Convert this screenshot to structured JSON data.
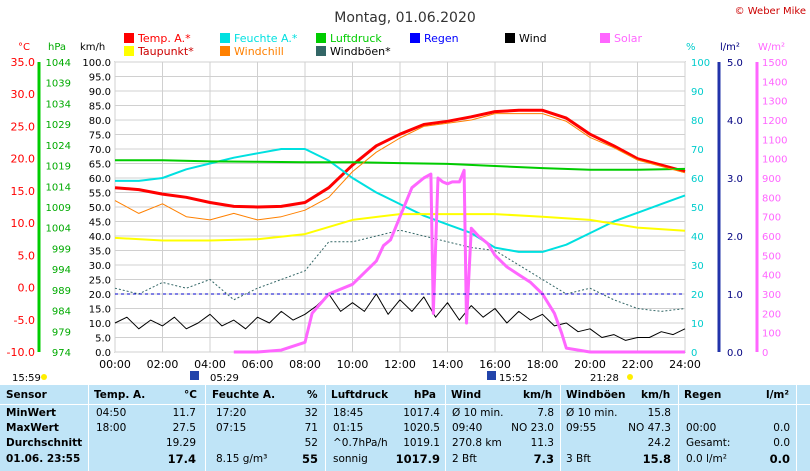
{
  "page": {
    "title": "Montag, 01.06.2020",
    "copyright": "© Weber Mike"
  },
  "legend": [
    {
      "label": "Temp. A.*",
      "color": "#ff0000"
    },
    {
      "label": "Feuchte A.*",
      "color": "#00e0e0"
    },
    {
      "label": "Luftdruck",
      "color": "#00cc00"
    },
    {
      "label": "Regen",
      "color": "#0000ff"
    },
    {
      "label": "Wind",
      "color": "#000000"
    },
    {
      "label": "Solar",
      "color": "#ff66ff"
    },
    {
      "label": "Taupunkt*",
      "color": "#ffff00"
    },
    {
      "label": "Windchill",
      "color": "#ff8000"
    },
    {
      "label": "Windböen*",
      "color": "#336666"
    }
  ],
  "chart_data": {
    "type": "line",
    "axes": {
      "temp": {
        "unit": "°C",
        "ticks": [
          "35.0",
          "30.0",
          "25.0",
          "20.0",
          "15.0",
          "10.0",
          "5.0",
          "0.0",
          "-5.0",
          "-10.0"
        ],
        "range": [
          -10,
          35
        ],
        "color": "#ff0000"
      },
      "pressure": {
        "unit": "hPa",
        "ticks": [
          "1044",
          "1039",
          "1034",
          "1029",
          "1024",
          "1019",
          "1014",
          "1009",
          "1004",
          "999",
          "994",
          "989",
          "984",
          "979",
          "974"
        ],
        "range": [
          974,
          1044
        ],
        "color": "#00aa00"
      },
      "wind": {
        "unit": "km/h",
        "ticks": [
          "100.0",
          "95.0",
          "90.0",
          "85.0",
          "80.0",
          "75.0",
          "70.0",
          "65.0",
          "60.0",
          "55.0",
          "50.0",
          "45.0",
          "40.0",
          "35.0",
          "30.0",
          "25.0",
          "20.0",
          "15.0",
          "10.0",
          "5.0",
          "0.0"
        ],
        "range": [
          0,
          100
        ],
        "color": "#000000"
      },
      "humidity": {
        "unit": "%",
        "ticks": [
          "100",
          "90",
          "80",
          "70",
          "60",
          "50",
          "40",
          "30",
          "20",
          "10",
          "0"
        ],
        "range": [
          0,
          100
        ],
        "color": "#00cccc"
      },
      "rain": {
        "unit": "l/m²",
        "ticks": [
          "5.0",
          "4.0",
          "3.0",
          "2.0",
          "1.0",
          "0.0"
        ],
        "range": [
          0,
          5
        ],
        "color": "#000080"
      },
      "solar": {
        "unit": "W/m²",
        "ticks": [
          "1500",
          "1400",
          "1300",
          "1200",
          "1100",
          "1000",
          "900",
          "800",
          "700",
          "600",
          "500",
          "400",
          "300",
          "200",
          "100",
          "0"
        ],
        "range": [
          0,
          1500
        ],
        "color": "#ff66ff"
      }
    },
    "x_ticks": [
      "00:00",
      "02:00",
      "04:00",
      "06:00",
      "08:00",
      "10:00",
      "12:00",
      "14:00",
      "16:00",
      "18:00",
      "20:00",
      "22:00",
      "24:00"
    ],
    "x_range": [
      0,
      24
    ],
    "series": [
      {
        "name": "Temp. A.*",
        "axis": "temp",
        "color": "#ff0000",
        "width": 3,
        "points": [
          [
            0,
            15.5
          ],
          [
            1,
            15.2
          ],
          [
            2,
            14.5
          ],
          [
            3,
            14
          ],
          [
            4,
            13.2
          ],
          [
            5,
            12.6
          ],
          [
            6,
            12.5
          ],
          [
            7,
            12.6
          ],
          [
            8,
            13.2
          ],
          [
            9,
            15.5
          ],
          [
            10,
            19
          ],
          [
            11,
            22
          ],
          [
            12,
            23.8
          ],
          [
            13,
            25.3
          ],
          [
            14,
            25.8
          ],
          [
            15,
            26.5
          ],
          [
            16,
            27.3
          ],
          [
            17,
            27.5
          ],
          [
            18,
            27.5
          ],
          [
            19,
            26.3
          ],
          [
            20,
            23.8
          ],
          [
            21,
            22
          ],
          [
            22,
            20
          ],
          [
            23,
            19
          ],
          [
            24,
            18
          ]
        ]
      },
      {
        "name": "Feuchte A.*",
        "axis": "humidity",
        "color": "#00e0e0",
        "width": 2,
        "points": [
          [
            0,
            59
          ],
          [
            1,
            59
          ],
          [
            2,
            60
          ],
          [
            3,
            63
          ],
          [
            4,
            65
          ],
          [
            5,
            67
          ],
          [
            6,
            68.5
          ],
          [
            7,
            70
          ],
          [
            8,
            70
          ],
          [
            9,
            66
          ],
          [
            10,
            60
          ],
          [
            11,
            55
          ],
          [
            12,
            51
          ],
          [
            13,
            47
          ],
          [
            14,
            44
          ],
          [
            15,
            41
          ],
          [
            16,
            36
          ],
          [
            17,
            34.5
          ],
          [
            18,
            34.5
          ],
          [
            19,
            37
          ],
          [
            20,
            41
          ],
          [
            21,
            45
          ],
          [
            22,
            48
          ],
          [
            23,
            51
          ],
          [
            24,
            54
          ]
        ]
      },
      {
        "name": "Luftdruck",
        "axis": "pressure",
        "color": "#00cc00",
        "width": 2,
        "points": [
          [
            0,
            1020.3
          ],
          [
            2,
            1020.3
          ],
          [
            4,
            1020.0
          ],
          [
            6,
            1019.9
          ],
          [
            8,
            1019.8
          ],
          [
            10,
            1019.8
          ],
          [
            12,
            1019.6
          ],
          [
            14,
            1019.4
          ],
          [
            16,
            1018.9
          ],
          [
            18,
            1018.4
          ],
          [
            20,
            1018.0
          ],
          [
            22,
            1018.0
          ],
          [
            24,
            1018.2
          ]
        ]
      },
      {
        "name": "Taupunkt*",
        "axis": "temp",
        "color": "#ffff00",
        "width": 2,
        "points": [
          [
            0,
            7.7
          ],
          [
            2,
            7.3
          ],
          [
            4,
            7.3
          ],
          [
            6,
            7.5
          ],
          [
            8,
            8.3
          ],
          [
            10,
            10.5
          ],
          [
            12,
            11.4
          ],
          [
            14,
            11.4
          ],
          [
            16,
            11.4
          ],
          [
            18,
            11.0
          ],
          [
            20,
            10.5
          ],
          [
            22,
            9.3
          ],
          [
            24,
            8.8
          ]
        ]
      },
      {
        "name": "Windchill",
        "axis": "temp",
        "color": "#ff8000",
        "width": 1,
        "points": [
          [
            0,
            13.5
          ],
          [
            1,
            11.5
          ],
          [
            2,
            13
          ],
          [
            3,
            11
          ],
          [
            4,
            10.5
          ],
          [
            5,
            11.5
          ],
          [
            6,
            10.5
          ],
          [
            7,
            11
          ],
          [
            8,
            12
          ],
          [
            9,
            14
          ],
          [
            10,
            18
          ],
          [
            11,
            21
          ],
          [
            12,
            23.2
          ],
          [
            13,
            25
          ],
          [
            14,
            25.5
          ],
          [
            15,
            26
          ],
          [
            16,
            27
          ],
          [
            17,
            27
          ],
          [
            18,
            27
          ],
          [
            19,
            25.8
          ],
          [
            20,
            23.3
          ],
          [
            21,
            21.7
          ],
          [
            22,
            19.8
          ],
          [
            23,
            18.8
          ],
          [
            24,
            17.8
          ]
        ]
      },
      {
        "name": "Windböen*",
        "axis": "wind",
        "color": "#336666",
        "width": 1,
        "dash": "2,2",
        "points": [
          [
            0,
            22
          ],
          [
            1,
            20
          ],
          [
            2,
            24
          ],
          [
            3,
            22
          ],
          [
            4,
            25
          ],
          [
            5,
            18
          ],
          [
            6,
            22
          ],
          [
            7,
            25
          ],
          [
            8,
            28
          ],
          [
            9,
            38
          ],
          [
            10,
            38
          ],
          [
            11,
            40
          ],
          [
            12,
            42
          ],
          [
            13,
            40
          ],
          [
            14,
            38
          ],
          [
            15,
            36
          ],
          [
            16,
            35
          ],
          [
            17,
            30
          ],
          [
            18,
            25
          ],
          [
            19,
            20
          ],
          [
            20,
            22
          ],
          [
            21,
            18
          ],
          [
            22,
            15
          ],
          [
            23,
            14
          ],
          [
            24,
            15
          ]
        ]
      },
      {
        "name": "Wind",
        "axis": "wind",
        "color": "#000000",
        "width": 1,
        "points": [
          [
            0,
            10
          ],
          [
            0.5,
            12
          ],
          [
            1,
            8
          ],
          [
            1.5,
            11
          ],
          [
            2,
            9
          ],
          [
            2.5,
            12
          ],
          [
            3,
            8
          ],
          [
            3.5,
            10
          ],
          [
            4,
            13
          ],
          [
            4.5,
            9
          ],
          [
            5,
            11
          ],
          [
            5.5,
            8
          ],
          [
            6,
            12
          ],
          [
            6.5,
            10
          ],
          [
            7,
            14
          ],
          [
            7.5,
            11
          ],
          [
            8,
            13
          ],
          [
            8.5,
            16
          ],
          [
            9,
            20
          ],
          [
            9.5,
            14
          ],
          [
            10,
            17
          ],
          [
            10.5,
            14
          ],
          [
            11,
            20
          ],
          [
            11.5,
            13
          ],
          [
            12,
            18
          ],
          [
            12.5,
            14
          ],
          [
            13,
            19
          ],
          [
            13.5,
            12
          ],
          [
            14,
            17
          ],
          [
            14.5,
            11
          ],
          [
            15,
            16
          ],
          [
            15.5,
            12
          ],
          [
            16,
            15
          ],
          [
            16.5,
            10
          ],
          [
            17,
            14
          ],
          [
            17.5,
            11
          ],
          [
            18,
            13
          ],
          [
            18.5,
            9
          ],
          [
            19,
            10
          ],
          [
            19.5,
            7
          ],
          [
            20,
            8
          ],
          [
            20.5,
            5
          ],
          [
            21,
            6
          ],
          [
            21.5,
            4
          ],
          [
            22,
            5
          ],
          [
            22.5,
            5
          ],
          [
            23,
            7
          ],
          [
            23.5,
            6
          ],
          [
            24,
            8
          ]
        ]
      },
      {
        "name": "Solar",
        "axis": "solar",
        "color": "#ff66ff",
        "width": 3,
        "points": [
          [
            5,
            0
          ],
          [
            6,
            0
          ],
          [
            7,
            10
          ],
          [
            8,
            50
          ],
          [
            8.3,
            200
          ],
          [
            9,
            300
          ],
          [
            10,
            350
          ],
          [
            11,
            470
          ],
          [
            11.3,
            550
          ],
          [
            11.6,
            580
          ],
          [
            12,
            700
          ],
          [
            12.5,
            850
          ],
          [
            13,
            900
          ],
          [
            13.3,
            920
          ],
          [
            13.4,
            200
          ],
          [
            13.6,
            900
          ],
          [
            13.8,
            880
          ],
          [
            14,
            870
          ],
          [
            14.2,
            880
          ],
          [
            14.5,
            880
          ],
          [
            14.7,
            940
          ],
          [
            14.8,
            150
          ],
          [
            15,
            640
          ],
          [
            15.3,
            600
          ],
          [
            15.7,
            560
          ],
          [
            16,
            500
          ],
          [
            16.5,
            440
          ],
          [
            17,
            400
          ],
          [
            17.5,
            360
          ],
          [
            18,
            300
          ],
          [
            18.5,
            200
          ],
          [
            18.8,
            100
          ],
          [
            19,
            20
          ],
          [
            20,
            0
          ],
          [
            24,
            0
          ]
        ]
      },
      {
        "name": "Regen",
        "axis": "rain",
        "color": "#0000cc",
        "width": 1,
        "dash": "3,3",
        "points": [
          [
            0,
            1.0
          ],
          [
            24,
            1.0
          ]
        ]
      }
    ],
    "annotations": {
      "sunrise": "05:29",
      "sunset": "21:28",
      "rain_start": "15:52",
      "left_time": "15:59"
    }
  },
  "table": {
    "headers": {
      "sensor": "Sensor",
      "temp": "Temp. A.",
      "temp_unit": "°C",
      "hum": "Feuchte A.",
      "hum_unit": "%",
      "press": "Luftdruck",
      "press_unit": "hPa",
      "wind": "Wind",
      "wind_unit": "km/h",
      "gust": "Windböen",
      "gust_unit": "km/h",
      "rain": "Regen",
      "rain_unit": "l/m²"
    },
    "rows": [
      {
        "label": "MinWert",
        "temp_t": "04:50",
        "temp_v": "11.7",
        "hum_t": "17:20",
        "hum_v": "32",
        "press_t": "18:45",
        "press_v": "1017.4",
        "wind_a": "Ø 10 min.",
        "wind_v": "7.8",
        "gust_a": "Ø 10 min.",
        "gust_v": "15.8",
        "rain_a": "",
        "rain_v": ""
      },
      {
        "label": "MaxWert",
        "temp_t": "18:00",
        "temp_v": "27.5",
        "hum_t": "07:15",
        "hum_v": "71",
        "press_t": "01:15",
        "press_v": "1020.5",
        "wind_a": "09:40",
        "wind_b": "NO 23.0",
        "gust_a": "09:55",
        "gust_b": "NO 47.3",
        "rain_a": "00:00",
        "rain_v": "0.0"
      },
      {
        "label": "Durchschnitt",
        "temp_t": "",
        "temp_v": "19.29",
        "hum_t": "",
        "hum_v": "52",
        "press_t": "^0.7hPa/h",
        "press_v": "1019.1",
        "wind_a": "270.8 km",
        "wind_v": "11.3",
        "gust_a": "",
        "gust_v": "24.2",
        "rain_a": "Gesamt:",
        "rain_v": "0.0"
      },
      {
        "label": "01.06. 23:55",
        "temp_t": "",
        "temp_v": "17.4",
        "hum_t": "8.15 g/m³",
        "hum_v": "55",
        "press_t": "sonnig",
        "press_v": "1017.9",
        "wind_a": "2 Bft",
        "wind_v": "7.3",
        "gust_a": "3 Bft",
        "gust_v": "15.8",
        "rain_a": "0.0 l/m²",
        "rain_v": "0.0"
      }
    ]
  }
}
